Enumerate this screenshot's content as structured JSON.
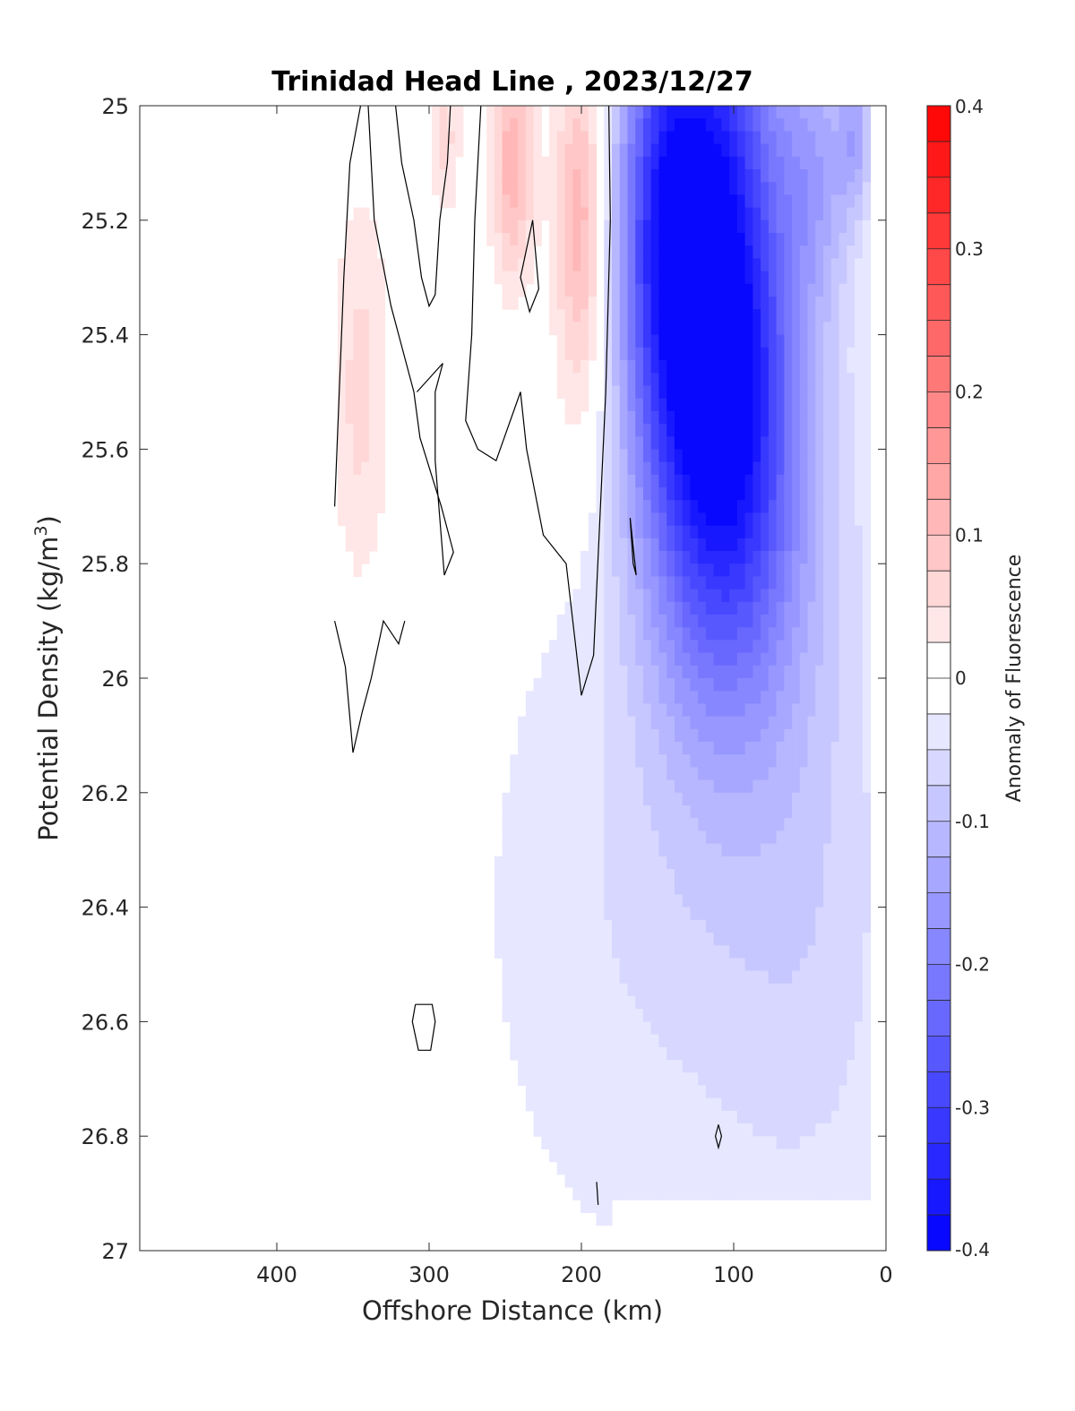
{
  "chart_data": {
    "type": "heatmap",
    "title": "Trinidad Head Line , 2023/12/27",
    "xlabel": "Offshore Distance (km)",
    "ylabel_main": "Potential Density (kg/m",
    "ylabel_sup": "3",
    "ylabel_close": ")",
    "xlim": [
      490,
      0
    ],
    "ylim": [
      25,
      27
    ],
    "x_reversed": true,
    "y_reversed": true,
    "xticks": [
      400,
      300,
      200,
      100,
      0
    ],
    "yticks": [
      25,
      25.2,
      25.4,
      25.6,
      25.8,
      26,
      26.2,
      26.4,
      26.6,
      26.8,
      27
    ],
    "xtick_labels": [
      "400",
      "300",
      "200",
      "100",
      "0"
    ],
    "ytick_labels": [
      "25",
      "25.2",
      "25.4",
      "25.6",
      "25.8",
      "26",
      "26.2",
      "26.4",
      "26.6",
      "26.8",
      "27"
    ],
    "colorbar": {
      "label": "Anomaly of Fluorescence",
      "min": -0.4,
      "max": 0.4,
      "levels": 32,
      "ticks": [
        0.4,
        0.3,
        0.2,
        0.1,
        0,
        -0.1,
        -0.2,
        -0.3,
        -0.4
      ],
      "tick_labels": [
        "0.4",
        "0.3",
        "0.2",
        "0.1",
        "0",
        "-0.1",
        "-0.2",
        "-0.3",
        "-0.4"
      ],
      "colormap": "blue-white-red",
      "color_low": "#0000ff",
      "color_mid": "#ffffff",
      "color_high": "#ff0000"
    },
    "fields": [
      {
        "x": 120,
        "y": 25.25,
        "sx": 35,
        "sy": 0.45,
        "amp": -0.38
      },
      {
        "x": 100,
        "y": 25.6,
        "sx": 32,
        "sy": 0.3,
        "amp": -0.14
      },
      {
        "x": 150,
        "y": 25.2,
        "sx": 18,
        "sy": 0.25,
        "amp": -0.1
      },
      {
        "x": 45,
        "y": 25.1,
        "sx": 18,
        "sy": 0.18,
        "amp": -0.1
      },
      {
        "x": 20,
        "y": 25.05,
        "sx": 8,
        "sy": 0.1,
        "amp": -0.1
      },
      {
        "x": 65,
        "y": 25.75,
        "sx": 40,
        "sy": 0.35,
        "amp": -0.06
      },
      {
        "x": 150,
        "y": 26.4,
        "sx": 90,
        "sy": 0.5,
        "amp": -0.05
      },
      {
        "x": 45,
        "y": 26.5,
        "sx": 45,
        "sy": 0.4,
        "amp": -0.04
      },
      {
        "x": 200,
        "y": 25.15,
        "sx": 12,
        "sy": 0.2,
        "amp": 0.12
      },
      {
        "x": 200,
        "y": 25.45,
        "sx": 14,
        "sy": 0.2,
        "amp": 0.05
      },
      {
        "x": 245,
        "y": 25.1,
        "sx": 10,
        "sy": 0.15,
        "amp": 0.12
      },
      {
        "x": 290,
        "y": 25.05,
        "sx": 8,
        "sy": 0.1,
        "amp": 0.06
      },
      {
        "x": 345,
        "y": 25.5,
        "sx": 14,
        "sy": 0.25,
        "amp": 0.06
      }
    ],
    "zero_contours": [
      [
        [
          345,
          25.0
        ],
        [
          352,
          25.1
        ],
        [
          356,
          25.3
        ],
        [
          362,
          25.7
        ]
      ],
      [
        [
          340,
          25.0
        ],
        [
          336,
          25.2
        ],
        [
          325,
          25.35
        ],
        [
          310,
          25.5
        ],
        [
          306,
          25.58
        ],
        [
          292,
          25.7
        ],
        [
          284,
          25.78
        ],
        [
          290,
          25.82
        ],
        [
          296,
          25.62
        ],
        [
          296,
          25.5
        ],
        [
          291,
          25.45
        ],
        [
          308,
          25.5
        ]
      ],
      [
        [
          322,
          25.0
        ],
        [
          318,
          25.1
        ],
        [
          310,
          25.2
        ],
        [
          305,
          25.3
        ],
        [
          300,
          25.35
        ],
        [
          296,
          25.33
        ],
        [
          293,
          25.2
        ],
        [
          288,
          25.1
        ],
        [
          286,
          25.0
        ]
      ],
      [
        [
          266,
          25.0
        ],
        [
          270,
          25.2
        ],
        [
          272,
          25.4
        ],
        [
          276,
          25.55
        ],
        [
          268,
          25.6
        ],
        [
          256,
          25.62
        ],
        [
          240,
          25.5
        ],
        [
          236,
          25.6
        ],
        [
          225,
          25.75
        ],
        [
          210,
          25.8
        ],
        [
          200,
          26.03
        ],
        [
          192,
          25.96
        ],
        [
          184,
          25.5
        ],
        [
          181,
          25.2
        ],
        [
          182,
          25.0
        ]
      ],
      [
        [
          232,
          25.2
        ],
        [
          228,
          25.32
        ],
        [
          234,
          25.36
        ],
        [
          240,
          25.3
        ],
        [
          236,
          25.25
        ],
        [
          232,
          25.2
        ]
      ],
      [
        [
          168,
          25.72
        ],
        [
          166,
          25.8
        ],
        [
          164,
          25.82
        ],
        [
          168,
          25.72
        ]
      ],
      [
        [
          362,
          25.9
        ],
        [
          355,
          25.98
        ],
        [
          350,
          26.13
        ],
        [
          344,
          26.06
        ],
        [
          338,
          26.0
        ],
        [
          330,
          25.9
        ],
        [
          320,
          25.94
        ],
        [
          316,
          25.9
        ]
      ],
      [
        [
          309,
          26.57
        ],
        [
          298,
          26.57
        ],
        [
          296,
          26.6
        ],
        [
          299,
          26.65
        ],
        [
          307,
          26.65
        ],
        [
          311,
          26.6
        ],
        [
          309,
          26.57
        ]
      ],
      [
        [
          110,
          26.78
        ],
        [
          108,
          26.8
        ],
        [
          110,
          26.82
        ],
        [
          112,
          26.8
        ],
        [
          110,
          26.78
        ]
      ],
      [
        [
          190,
          26.88
        ],
        [
          189,
          26.92
        ]
      ]
    ]
  }
}
